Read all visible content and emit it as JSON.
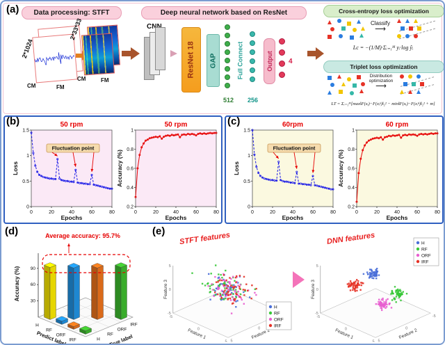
{
  "labels": {
    "a": "(a)",
    "b": "(b)",
    "c": "(c)",
    "d": "(d)",
    "e": "(e)"
  },
  "panel_a": {
    "stft": {
      "title": "Data processing: STFT",
      "signal_dim": "2*1024",
      "spec_dim": "2*33*33",
      "cm1": "CM",
      "fm1": "FM",
      "cm2": "CM",
      "fm2": "FM"
    },
    "dnn": {
      "title": "Deep neural network based on ResNet",
      "cnn": "CNN",
      "resnet": "ResNet 18",
      "gap": "GAP",
      "fc": "Full Connect",
      "d512": "512",
      "d256": "256",
      "output": "Output",
      "d4": "4"
    },
    "ce": {
      "title": "Cross-entropy loss optimization",
      "classify": "Classify",
      "formula": "Lc = −(1/M)·Σᵢ₌₁ᴹ yᵢ·log ŷᵢ",
      "shapes_mixed": [
        {
          "s": "t",
          "c": "#e63226"
        },
        {
          "s": "c",
          "c": "#2b7de0"
        },
        {
          "s": "s",
          "c": "#f2c500"
        },
        {
          "s": "t",
          "c": "#2b7de0"
        },
        {
          "s": "c",
          "c": "#e63226"
        },
        {
          "s": "s",
          "c": "#35b8a8"
        },
        {
          "s": "c",
          "c": "#f2c500"
        },
        {
          "s": "t",
          "c": "#f2c500"
        },
        {
          "s": "s",
          "c": "#e63226"
        },
        {
          "s": "c",
          "c": "#2b7de0"
        },
        {
          "s": "s",
          "c": "#2b7de0"
        },
        {
          "s": "t",
          "c": "#35b8a8"
        }
      ],
      "shapes_grouped": [
        [
          {
            "s": "t",
            "c": "#e63226"
          },
          {
            "s": "t",
            "c": "#2b7de0"
          },
          {
            "s": "t",
            "c": "#f2c500"
          }
        ],
        [
          {
            "s": "s",
            "c": "#2b7de0"
          },
          {
            "s": "s",
            "c": "#e63226"
          },
          {
            "s": "s",
            "c": "#f2c500"
          }
        ],
        [
          {
            "s": "c",
            "c": "#f2c500"
          },
          {
            "s": "c",
            "c": "#2b7de0"
          },
          {
            "s": "c",
            "c": "#e63226"
          }
        ]
      ]
    },
    "triplet": {
      "title": "Triplet loss optimization",
      "dist": "Distribution optimization",
      "formula": "LT = Σᵢ₌₁ᴹ[max‖F(xᵢ)−F(xᵢᵖ)‖₂² − min‖F(xᵢ)−F(xᵢⁿ)‖₂² + m]",
      "shapes_mixed": [
        {
          "s": "s",
          "c": "#2b7de0"
        },
        {
          "s": "t",
          "c": "#e63226"
        },
        {
          "s": "c",
          "c": "#f2c500"
        },
        {
          "s": "s",
          "c": "#e63226"
        },
        {
          "s": "c",
          "c": "#2b7de0"
        },
        {
          "s": "t",
          "c": "#f2c500"
        },
        {
          "s": "s",
          "c": "#35b8a8"
        },
        {
          "s": "c",
          "c": "#e63226"
        },
        {
          "s": "t",
          "c": "#2b7de0"
        },
        {
          "s": "s",
          "c": "#f2c500"
        },
        {
          "s": "c",
          "c": "#35b8a8"
        },
        {
          "s": "t",
          "c": "#e63226"
        }
      ],
      "shapes_grouped": [
        [
          {
            "s": "c",
            "c": "#e63226"
          },
          {
            "s": "c",
            "c": "#f2c500"
          },
          {
            "s": "c",
            "c": "#2b7de0"
          }
        ],
        [
          {
            "s": "s",
            "c": "#2b7de0"
          },
          {
            "s": "s",
            "c": "#35b8a8"
          },
          {
            "s": "s",
            "c": "#e63226"
          }
        ],
        [
          {
            "s": "t",
            "c": "#f2c500"
          },
          {
            "s": "t",
            "c": "#e63226"
          },
          {
            "s": "t",
            "c": "#2b7de0"
          }
        ]
      ]
    }
  },
  "chart_data": [
    {
      "id": "loss50",
      "type": "line",
      "title": "50 rpm",
      "xlabel": "Epochs",
      "ylabel": "Loss",
      "xlim": [
        0,
        80
      ],
      "ylim": [
        0,
        1.5
      ],
      "xticks": [
        0,
        20,
        40,
        60,
        80
      ],
      "yticks": [
        0,
        0.5,
        1,
        1.5
      ],
      "line_color": "#1a1ae6",
      "dashed": true,
      "bg": "#fbe9f6",
      "annotation": {
        "text": "Fluctuation point",
        "targets": [
          [
            26,
            0.97
          ],
          [
            44,
            0.76
          ],
          [
            60,
            0.66
          ]
        ]
      },
      "x": [
        0,
        2,
        4,
        6,
        8,
        10,
        12,
        14,
        16,
        18,
        20,
        22,
        24,
        26,
        28,
        30,
        32,
        34,
        36,
        38,
        40,
        42,
        44,
        46,
        48,
        50,
        52,
        54,
        56,
        58,
        60,
        62,
        64,
        66,
        68,
        70,
        72,
        74,
        76,
        78,
        80
      ],
      "y": [
        1.45,
        1.05,
        0.8,
        0.68,
        0.62,
        0.6,
        0.58,
        0.57,
        0.56,
        0.55,
        0.55,
        0.54,
        0.54,
        0.93,
        0.55,
        0.52,
        0.51,
        0.5,
        0.5,
        0.49,
        0.49,
        0.48,
        0.72,
        0.47,
        0.46,
        0.46,
        0.45,
        0.45,
        0.44,
        0.44,
        0.62,
        0.43,
        0.42,
        0.41,
        0.4,
        0.39,
        0.38,
        0.37,
        0.36,
        0.35,
        0.35
      ]
    },
    {
      "id": "acc50",
      "type": "line",
      "title": "50 rpm",
      "xlabel": "Epochs",
      "ylabel": "Accuracy (%)",
      "xlim": [
        0,
        80
      ],
      "ylim": [
        0.2,
        1
      ],
      "xticks": [
        0,
        20,
        40,
        60,
        80
      ],
      "yticks": [
        0.2,
        0.4,
        0.6,
        0.8,
        1
      ],
      "line_color": "#e60000",
      "dashed": false,
      "bg": "#fbe9f6",
      "x": [
        0,
        2,
        4,
        6,
        8,
        10,
        12,
        14,
        16,
        18,
        20,
        22,
        24,
        26,
        28,
        30,
        32,
        34,
        36,
        38,
        40,
        42,
        44,
        46,
        48,
        50,
        52,
        54,
        56,
        58,
        60,
        62,
        64,
        66,
        68,
        70,
        72,
        74,
        76,
        78,
        80
      ],
      "y": [
        0.3,
        0.6,
        0.74,
        0.82,
        0.86,
        0.89,
        0.9,
        0.915,
        0.92,
        0.925,
        0.93,
        0.925,
        0.935,
        0.91,
        0.93,
        0.94,
        0.945,
        0.94,
        0.95,
        0.945,
        0.95,
        0.955,
        0.925,
        0.95,
        0.955,
        0.95,
        0.96,
        0.955,
        0.96,
        0.955,
        0.945,
        0.96,
        0.965,
        0.96,
        0.965,
        0.96,
        0.965,
        0.97,
        0.965,
        0.97,
        0.97
      ]
    },
    {
      "id": "loss60",
      "type": "line",
      "title": "60rpm",
      "xlabel": "Epochs",
      "ylabel": "Loss",
      "xlim": [
        0,
        80
      ],
      "ylim": [
        0,
        1.5
      ],
      "xticks": [
        0,
        20,
        40,
        60,
        80
      ],
      "yticks": [
        0,
        0.5,
        1,
        1.5
      ],
      "line_color": "#1a1ae6",
      "dashed": true,
      "bg": "#fbf9e0",
      "annotation": {
        "text": "Fluctuation point",
        "targets": [
          [
            26,
            0.92
          ],
          [
            44,
            0.72
          ],
          [
            60,
            0.64
          ]
        ]
      },
      "x": [
        0,
        2,
        4,
        6,
        8,
        10,
        12,
        14,
        16,
        18,
        20,
        22,
        24,
        26,
        28,
        30,
        32,
        34,
        36,
        38,
        40,
        42,
        44,
        46,
        48,
        50,
        52,
        54,
        56,
        58,
        60,
        62,
        64,
        66,
        68,
        70,
        72,
        74,
        76,
        78,
        80
      ],
      "y": [
        1.5,
        1.02,
        0.78,
        0.66,
        0.6,
        0.57,
        0.55,
        0.54,
        0.53,
        0.52,
        0.52,
        0.51,
        0.51,
        0.88,
        0.52,
        0.5,
        0.49,
        0.49,
        0.48,
        0.47,
        0.47,
        0.46,
        0.68,
        0.45,
        0.45,
        0.44,
        0.44,
        0.43,
        0.43,
        0.42,
        0.6,
        0.42,
        0.41,
        0.4,
        0.39,
        0.38,
        0.37,
        0.36,
        0.35,
        0.34,
        0.34
      ]
    },
    {
      "id": "acc60",
      "type": "line",
      "title": "60 rpm",
      "xlabel": "Epochs",
      "ylabel": "Accuracy (%)",
      "xlim": [
        0,
        80
      ],
      "ylim": [
        0.2,
        1
      ],
      "xticks": [
        0,
        20,
        40,
        60,
        80
      ],
      "yticks": [
        0.2,
        0.4,
        0.6,
        0.8,
        1
      ],
      "line_color": "#e60000",
      "dashed": false,
      "bg": "#fbf9e0",
      "x": [
        0,
        2,
        4,
        6,
        8,
        10,
        12,
        14,
        16,
        18,
        20,
        22,
        24,
        26,
        28,
        30,
        32,
        34,
        36,
        38,
        40,
        42,
        44,
        46,
        48,
        50,
        52,
        54,
        56,
        58,
        60,
        62,
        64,
        66,
        68,
        70,
        72,
        74,
        76,
        78,
        80
      ],
      "y": [
        0.25,
        0.55,
        0.7,
        0.79,
        0.84,
        0.87,
        0.89,
        0.9,
        0.91,
        0.915,
        0.92,
        0.915,
        0.925,
        0.9,
        0.925,
        0.93,
        0.94,
        0.935,
        0.945,
        0.94,
        0.945,
        0.95,
        0.92,
        0.945,
        0.95,
        0.945,
        0.955,
        0.95,
        0.955,
        0.95,
        0.94,
        0.955,
        0.96,
        0.955,
        0.96,
        0.955,
        0.96,
        0.965,
        0.96,
        0.965,
        0.965
      ]
    },
    {
      "id": "confusion",
      "type": "bar",
      "annotation": "Average accuracy: 95.7%",
      "ylabel": "Accuracy (%)",
      "xlabel": "Predict label",
      "zlabel": "True label",
      "yticks": [
        30,
        60,
        90
      ],
      "categories": [
        "H",
        "RF",
        "ORF",
        "IRF"
      ],
      "colors": [
        "#ffee00",
        "#2196e8",
        "#f2761d",
        "#3fbf2f"
      ],
      "diagonal": [
        96,
        95,
        95,
        96
      ],
      "small_bars": [
        {
          "cell": [
            1,
            0
          ],
          "value": 6
        },
        {
          "cell": [
            2,
            0
          ],
          "value": 5
        },
        {
          "cell": [
            3,
            0
          ],
          "value": 6
        }
      ]
    },
    {
      "id": "stft_features",
      "type": "scatter",
      "title": "STFT features",
      "axes": [
        "Feature 1",
        "Feature 2",
        "Feature 3"
      ],
      "ticks": [
        -5,
        0,
        5
      ],
      "range": [
        -5,
        5
      ],
      "title_pos": [
        62,
        16
      ],
      "legend_pos": [
        150,
        104
      ],
      "legend": [
        {
          "name": "H",
          "color": "#4a6fd8"
        },
        {
          "name": "RF",
          "color": "#37c837"
        },
        {
          "name": "ORF",
          "color": "#e85fd0"
        },
        {
          "name": "IRF",
          "color": "#e63226"
        }
      ],
      "clusters": [
        {
          "name": "H",
          "color": "#4a6fd8",
          "count": 55,
          "cx": 0.3,
          "cy": 0.4,
          "cz": 0.2,
          "s": 4
        },
        {
          "name": "RF",
          "color": "#37c837",
          "count": 55,
          "cx": -0.4,
          "cy": 0.1,
          "cz": 0.3,
          "s": 4
        },
        {
          "name": "ORF",
          "color": "#e85fd0",
          "count": 55,
          "cx": 0.1,
          "cy": -0.3,
          "cz": -0.2,
          "s": 4
        },
        {
          "name": "IRF",
          "color": "#e63226",
          "count": 55,
          "cx": 0.4,
          "cy": -0.2,
          "cz": 0.1,
          "s": 4
        }
      ]
    },
    {
      "id": "dnn_features",
      "type": "scatter",
      "title": "DNN features",
      "axes": [
        "Feature 1",
        "Feature 2",
        "Feature 3"
      ],
      "ticks": [
        -5,
        0,
        5
      ],
      "range": [
        -5,
        5
      ],
      "title_pos": [
        60,
        16
      ],
      "legend_pos": [
        150,
        12
      ],
      "legend": [
        {
          "name": "H",
          "color": "#4a6fd8"
        },
        {
          "name": "RF",
          "color": "#37c837"
        },
        {
          "name": "ORF",
          "color": "#e85fd0"
        },
        {
          "name": "IRF",
          "color": "#e63226"
        }
      ],
      "clusters": [
        {
          "name": "H",
          "color": "#4a6fd8",
          "count": 55,
          "cx": 0.3,
          "cy": 0.5,
          "cz": 3.6,
          "s": 1.3
        },
        {
          "name": "RF",
          "color": "#37c837",
          "count": 55,
          "cx": 3.4,
          "cy": -0.6,
          "cz": 0.4,
          "s": 1.3
        },
        {
          "name": "ORF",
          "color": "#e85fd0",
          "count": 55,
          "cx": 0.4,
          "cy": -1.0,
          "cz": -3.4,
          "s": 1.3
        },
        {
          "name": "IRF",
          "color": "#e63226",
          "count": 55,
          "cx": -3.5,
          "cy": 0.3,
          "cz": -0.8,
          "s": 1.3
        }
      ]
    }
  ]
}
